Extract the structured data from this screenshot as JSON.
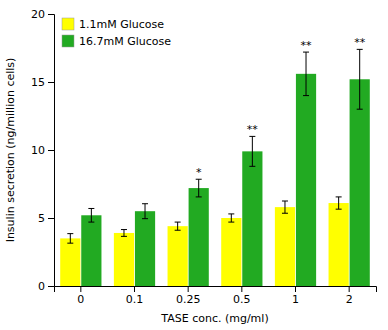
{
  "chart_data": {
    "type": "bar",
    "categories": [
      "0",
      "0.1",
      "0.25",
      "0.5",
      "1",
      "2"
    ],
    "xlabel": "TASE conc. (mg/ml)",
    "ylabel": "Insulin secretion (ng/million  cells)",
    "series": [
      {
        "name": "1.1mM Glucose",
        "color": "#FFFF00",
        "values": [
          3.5,
          3.9,
          4.4,
          5.0,
          5.8,
          6.1
        ],
        "errors": [
          0.35,
          0.25,
          0.3,
          0.3,
          0.45,
          0.45
        ]
      },
      {
        "name": "16.7mM Glucose",
        "color": "#22AA22",
        "values": [
          5.2,
          5.5,
          7.2,
          9.9,
          15.6,
          15.2
        ],
        "errors": [
          0.5,
          0.55,
          0.65,
          1.1,
          1.6,
          2.2
        ],
        "significance": [
          null,
          null,
          "*",
          "**",
          "**",
          "**"
        ]
      }
    ],
    "ylim": [
      0,
      20
    ],
    "yticks": [
      0,
      5,
      10,
      15,
      20
    ],
    "grid": false,
    "legend": "upper left"
  }
}
